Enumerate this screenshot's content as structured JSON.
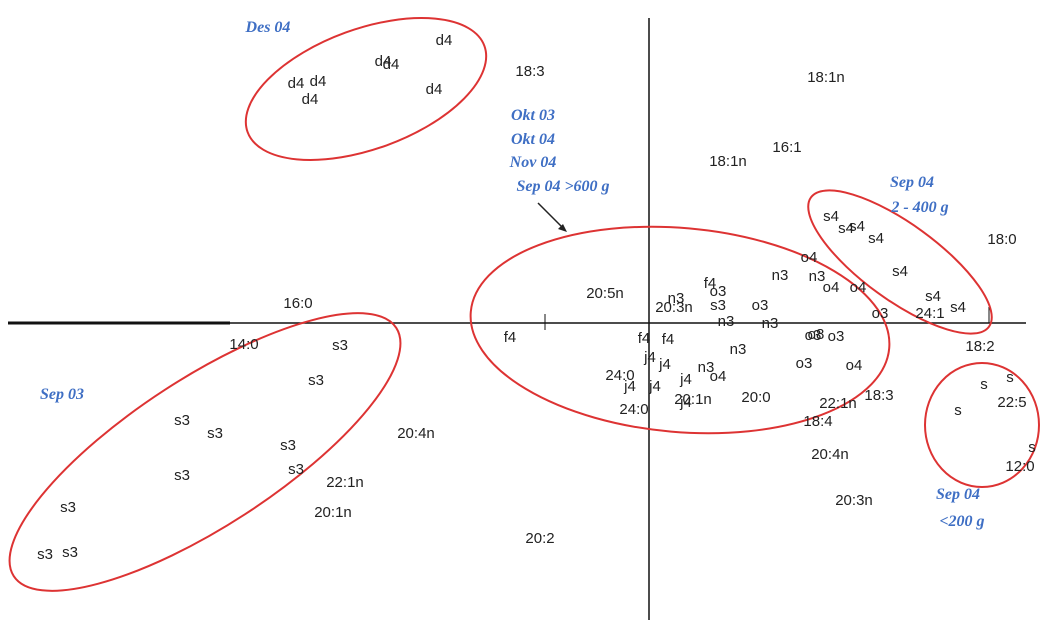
{
  "annotations": [
    "Des 04",
    "Okt 03",
    "Okt 04",
    "Nov 04",
    "Sep 04 >600 g",
    "Sep 04",
    "2 - 400 g",
    "Sep 03",
    "Sep 04",
    "<200 g"
  ],
  "points": [
    "d4",
    "d4",
    "d4",
    "d4",
    "d4",
    "d4",
    "d4",
    "18:3",
    "18:1n",
    "16:1",
    "18:1n",
    "18:0",
    "16:0",
    "20:5n",
    "20:3n",
    "n3",
    "f4",
    "o3",
    "s3",
    "o3",
    "n3",
    "n3",
    "o4",
    "o4",
    "o4",
    "s4",
    "s4",
    "s4",
    "s4",
    "s4",
    "s4",
    "s4",
    "24:1",
    "o3",
    "f4",
    "14:0",
    "s3",
    "s3",
    "s3",
    "s3",
    "s3",
    "s3",
    "s3",
    "s3",
    "s3",
    "s3",
    "20:4n",
    "22:1n",
    "20:1n",
    "20:2",
    "f4",
    "f4",
    "24:0",
    "j4",
    "j4",
    "j4",
    "j4",
    "j4",
    "24:0",
    "j4",
    "20:1n",
    "20:0",
    "n3",
    "o4",
    "n3",
    "n3",
    "n3",
    "o3",
    "o3",
    "o3",
    "o4",
    "o8",
    "18:2",
    "18:3",
    "22:1n",
    "18:4",
    "20:4n",
    "20:3n",
    "s",
    "s",
    "s",
    "22:5",
    "s",
    "12:0"
  ]
}
